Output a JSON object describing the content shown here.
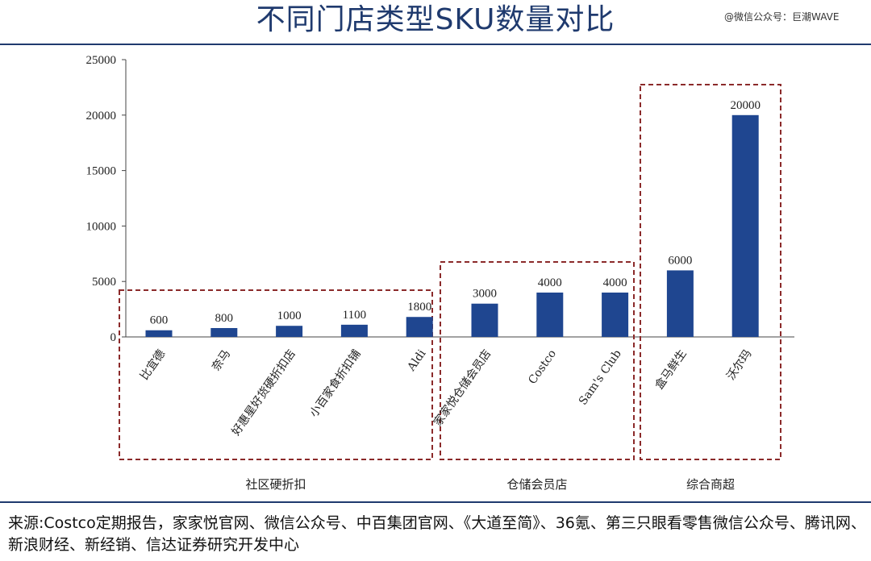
{
  "header": {
    "title": "不同门店类型SKU数量对比",
    "watermark": "@微信公众号：巨潮WAVE"
  },
  "footer": {
    "source": "来源:Costco定期报告，家家悦官网、微信公众号、中百集团官网、《大道至简》、36氪、第三只眼看零售微信公众号、腾讯网、新浪财经、新经销、信达证券研究开发中心"
  },
  "chart_data": {
    "type": "bar",
    "title": "不同门店类型SKU数量对比",
    "xlabel": "",
    "ylabel": "",
    "ylim": [
      0,
      25000
    ],
    "yticks": [
      0,
      5000,
      10000,
      15000,
      20000,
      25000
    ],
    "categories": [
      "比宜德",
      "奈马",
      "好惠星好货硬折扣店",
      "小百家食折扣铺",
      "Aldi",
      "家家悦仓储会员店",
      "Costco",
      "Sam's Club",
      "盒马鲜生",
      "沃尔玛"
    ],
    "values": [
      600,
      800,
      1000,
      1100,
      1800,
      3000,
      4000,
      4000,
      6000,
      20000
    ],
    "bar_color": "#1f4690",
    "grid": false,
    "groups": [
      {
        "label": "社区硬折扣",
        "members": [
          0,
          1,
          2,
          3,
          4
        ]
      },
      {
        "label": "仓储会员店",
        "members": [
          5,
          6,
          7
        ]
      },
      {
        "label": "综合商超",
        "members": [
          8,
          9
        ]
      }
    ],
    "group_box_color": "#8b2a2a"
  }
}
